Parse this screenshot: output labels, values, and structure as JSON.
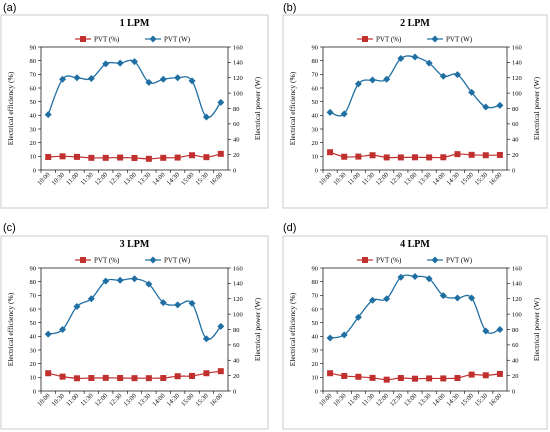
{
  "colors": {
    "power": "#1f6fa3",
    "efficiency": "#c0302f",
    "frame": "#000000",
    "panel_border": "#bfbfbf"
  },
  "chart_data": [
    {
      "panel_label": "(a)",
      "type": "line",
      "title": "1 LPM",
      "categories": [
        "10:00",
        "10:30",
        "11:00",
        "11:30",
        "12:00",
        "12:30",
        "13:00",
        "13:30",
        "14:00",
        "14:30",
        "15:00",
        "15:30",
        "16:00"
      ],
      "series": [
        {
          "name": "PVT (%)",
          "axis": "left",
          "marker": "square",
          "values": [
            9.5,
            10,
            9.6,
            8.9,
            8.9,
            9.1,
            8.8,
            8.2,
            8.9,
            9.1,
            10.8,
            9.4,
            11.8
          ]
        },
        {
          "name": "PVT (W)",
          "axis": "right",
          "marker": "diamond",
          "values": [
            72,
            118,
            120,
            119,
            138,
            139,
            141,
            114,
            118,
            120,
            116,
            69,
            88
          ]
        }
      ],
      "ylabel_left": "Electrical efficiency (%)",
      "ylim_left": [
        0,
        90
      ],
      "yticks_left": [
        0,
        10,
        20,
        30,
        40,
        50,
        60,
        70,
        80,
        90
      ],
      "ylabel_right": "Electrical power (W)",
      "ylim_right": [
        0,
        160
      ],
      "yticks_right": [
        0,
        20,
        40,
        60,
        80,
        100,
        120,
        140,
        160
      ],
      "grid": false,
      "legend_position": "top"
    },
    {
      "panel_label": "(b)",
      "type": "line",
      "title": "2 LPM",
      "categories": [
        "10:00",
        "10:30",
        "11:00",
        "11:30",
        "12:00",
        "12:30",
        "13:00",
        "13:30",
        "14:00",
        "14:30",
        "15:00",
        "15:30",
        "16:00"
      ],
      "series": [
        {
          "name": "PVT (%)",
          "axis": "left",
          "marker": "square",
          "values": [
            13,
            9.7,
            9.8,
            10.8,
            9.2,
            9.2,
            9.3,
            9.2,
            9.3,
            11.6,
            11.1,
            10.8,
            11
          ]
        },
        {
          "name": "PVT (W)",
          "axis": "right",
          "marker": "diamond",
          "values": [
            75,
            73,
            112,
            117,
            118,
            145,
            147,
            139,
            122,
            124,
            101,
            82,
            84
          ]
        }
      ],
      "ylabel_left": "Electrical efficiency (%)",
      "ylim_left": [
        0,
        90
      ],
      "yticks_left": [
        0,
        10,
        20,
        30,
        40,
        50,
        60,
        70,
        80,
        90
      ],
      "ylabel_right": "Electrical power (W)",
      "ylim_right": [
        0,
        160
      ],
      "yticks_right": [
        0,
        20,
        40,
        60,
        80,
        100,
        120,
        140,
        160
      ],
      "grid": false,
      "legend_position": "top"
    },
    {
      "panel_label": "(c)",
      "type": "line",
      "title": "3 LPM",
      "categories": [
        "10:00",
        "10:30",
        "11:00",
        "11:30",
        "12:00",
        "12:30",
        "13:00",
        "13:30",
        "14:00",
        "14:30",
        "15:00",
        "15:30",
        "16:00"
      ],
      "series": [
        {
          "name": "PVT (%)",
          "axis": "left",
          "marker": "square",
          "values": [
            13,
            10.5,
            9.3,
            9.5,
            9.6,
            9.5,
            9.4,
            9.4,
            9.5,
            10.8,
            11,
            13,
            14.5
          ]
        },
        {
          "name": "PVT (W)",
          "axis": "right",
          "marker": "diamond",
          "values": [
            74,
            80,
            110,
            120,
            143,
            144,
            146,
            139,
            115,
            112,
            114,
            68,
            84
          ]
        }
      ],
      "ylabel_left": "Electrical efficiency (%)",
      "ylim_left": [
        0,
        90
      ],
      "yticks_left": [
        0,
        10,
        20,
        30,
        40,
        50,
        60,
        70,
        80,
        90
      ],
      "ylabel_right": "Electrical power (W)",
      "ylim_right": [
        0,
        160
      ],
      "yticks_right": [
        0,
        20,
        40,
        60,
        80,
        100,
        120,
        140,
        160
      ],
      "grid": false,
      "legend_position": "top"
    },
    {
      "panel_label": "(d)",
      "type": "line",
      "title": "4 LPM",
      "categories": [
        "10:00",
        "10:30",
        "11:00",
        "11:30",
        "12:00",
        "12:30",
        "13:00",
        "13:30",
        "14:00",
        "14:30",
        "15:00",
        "15:30",
        "16:00"
      ],
      "series": [
        {
          "name": "PVT (%)",
          "axis": "left",
          "marker": "square",
          "values": [
            13,
            11,
            10.4,
            9.6,
            8.3,
            9.5,
            9,
            9.2,
            9.2,
            9.5,
            12,
            11.5,
            12.5
          ]
        },
        {
          "name": "PVT (W)",
          "axis": "right",
          "marker": "diamond",
          "values": [
            69,
            73,
            96,
            118,
            120,
            148,
            149,
            146,
            124,
            121,
            121,
            78,
            80
          ]
        }
      ],
      "ylabel_left": "Electrical efficiency (%)",
      "ylim_left": [
        0,
        90
      ],
      "yticks_left": [
        0,
        10,
        20,
        30,
        40,
        50,
        60,
        70,
        80,
        90
      ],
      "ylabel_right": "Electrical power (W)",
      "ylim_right": [
        0,
        160
      ],
      "yticks_right": [
        0,
        20,
        40,
        60,
        80,
        100,
        120,
        140,
        160
      ],
      "grid": false,
      "legend_position": "top"
    }
  ]
}
